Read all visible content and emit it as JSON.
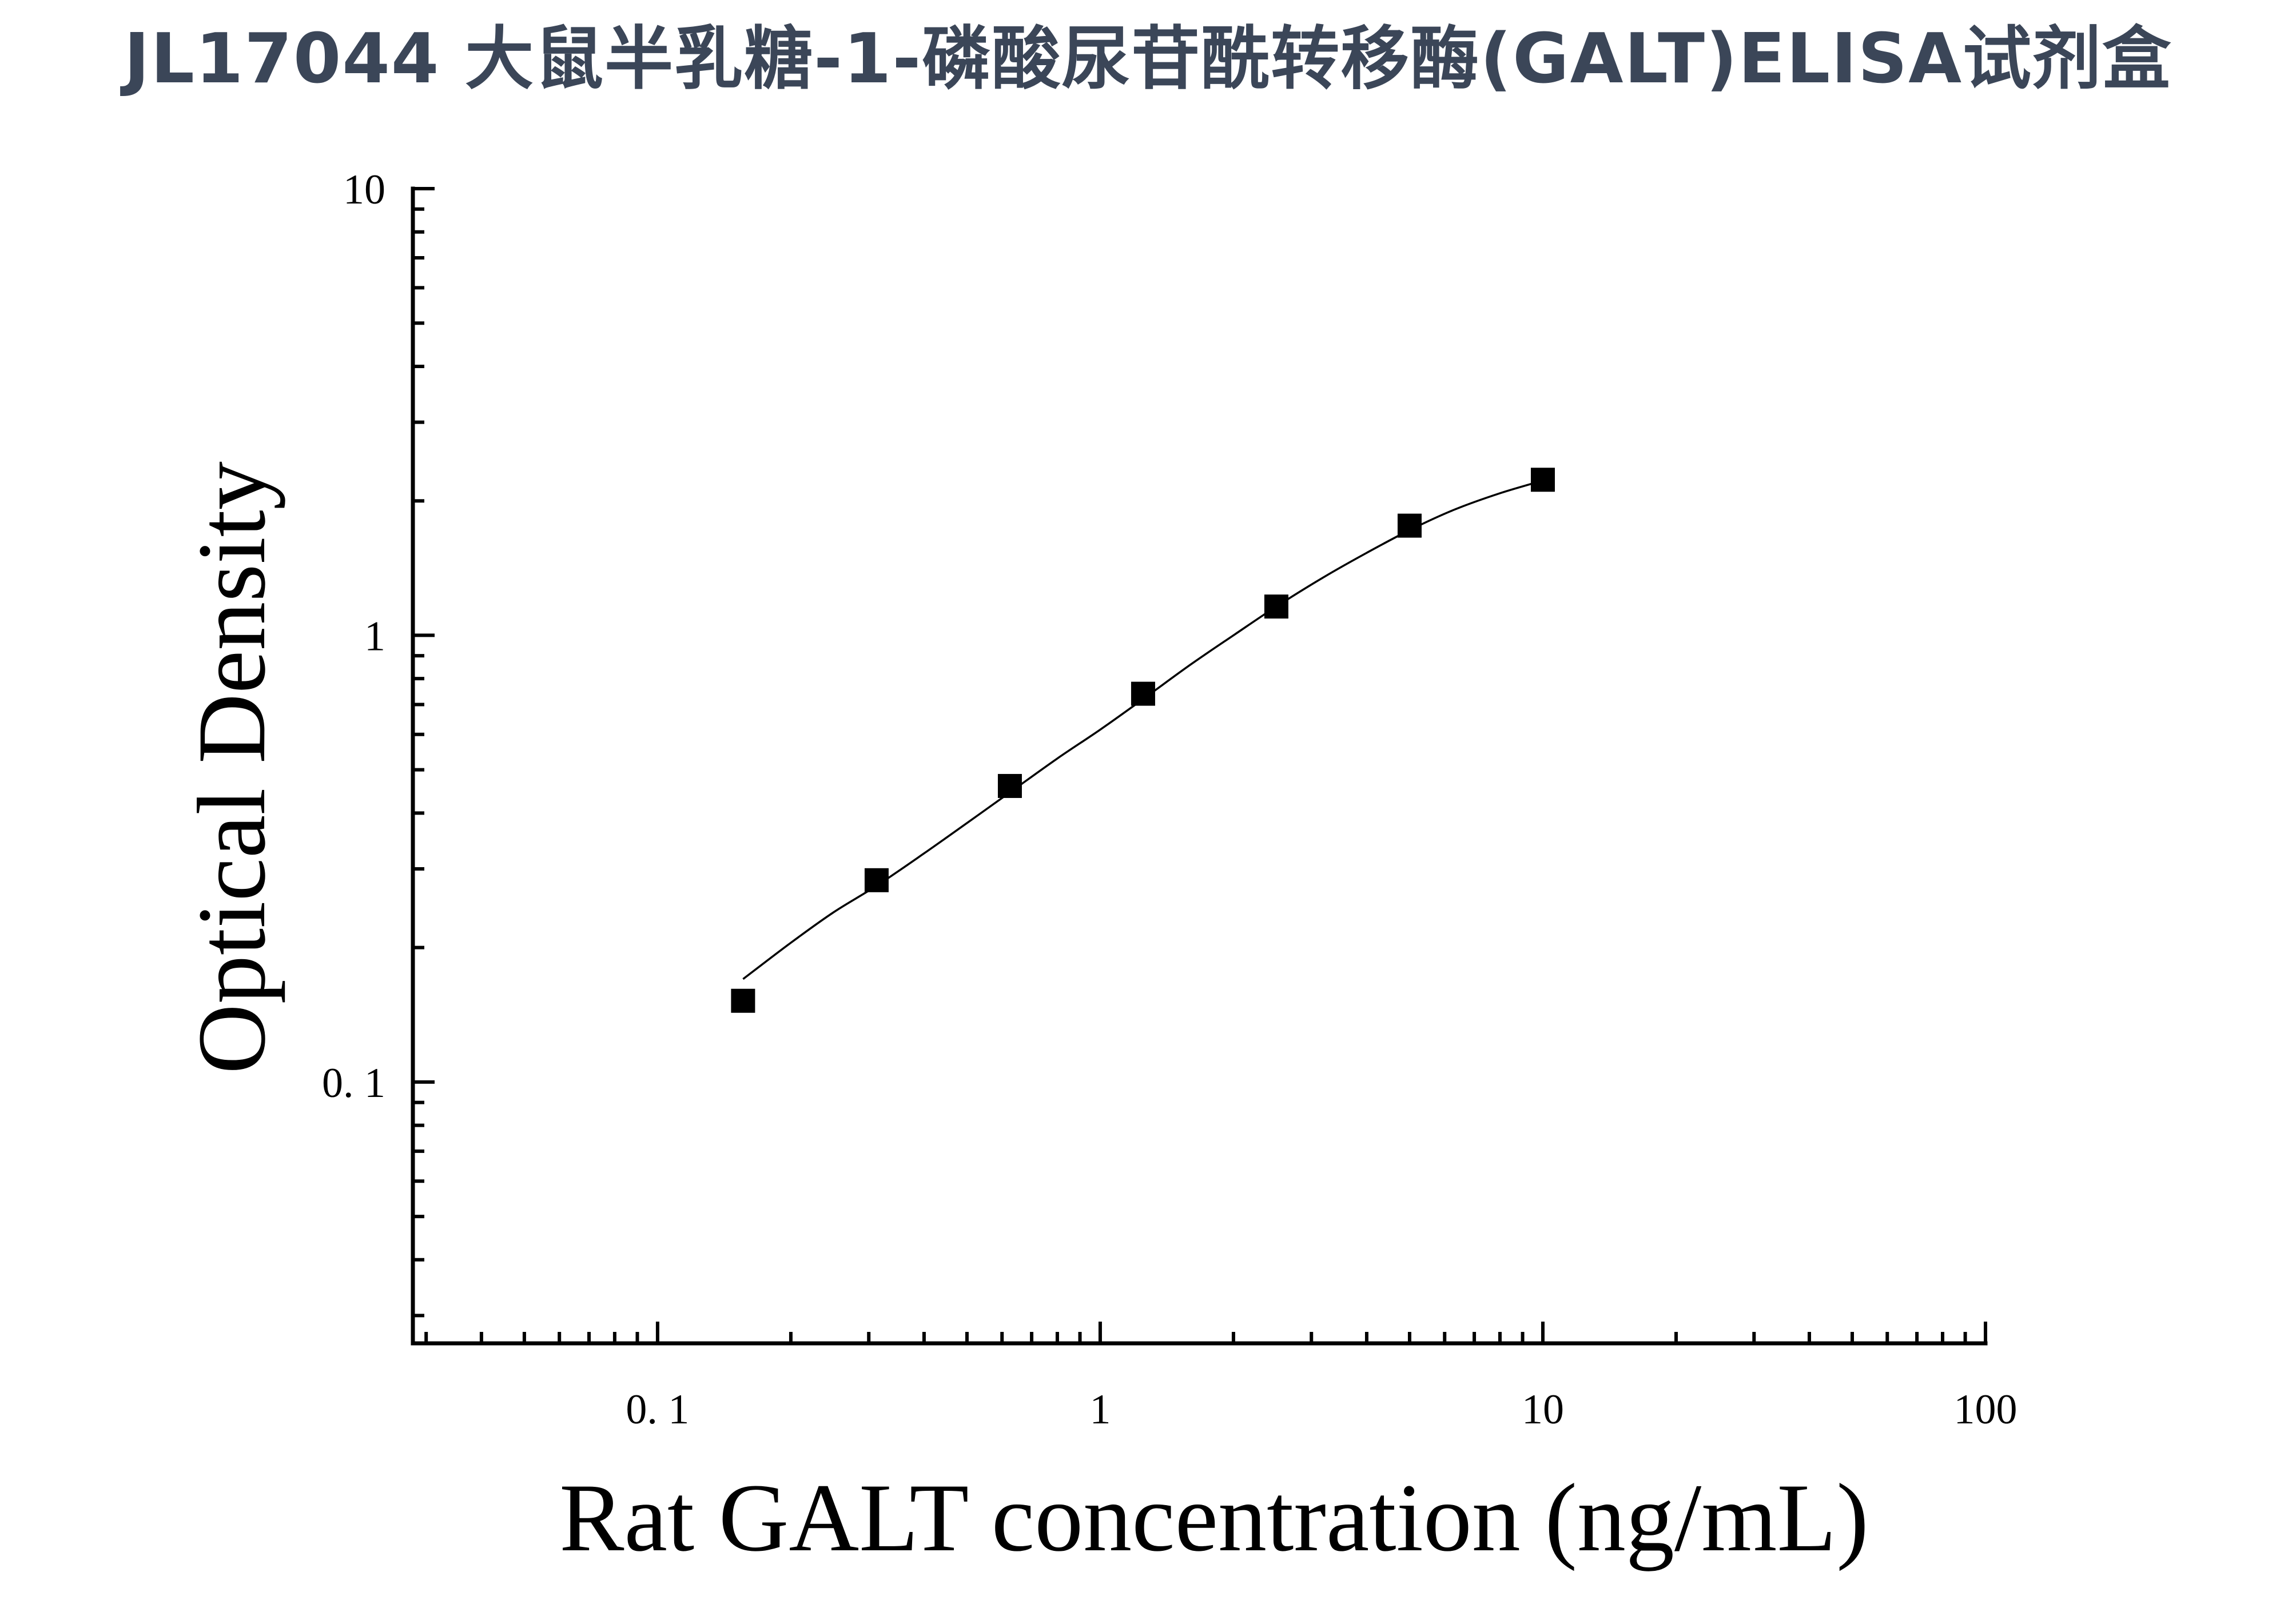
{
  "header": {
    "title": "JL17044 大鼠半乳糖-1-磷酸尿苷酰转移酶(GALT)ELISA试剂盒"
  },
  "colors": {
    "title": "#3b4658",
    "axis": "#000000",
    "marker": "#000000",
    "curve": "#000000"
  },
  "chart_data": {
    "type": "scatter",
    "title": "",
    "xlabel": "Rat GALT concentration (ng/mL)",
    "ylabel": "Optical Density",
    "x_scale": "log",
    "y_scale": "log",
    "xlim": [
      0.028,
      100
    ],
    "ylim": [
      0.026,
      10
    ],
    "x_ticks": [
      {
        "value": 0.1,
        "label": "0. 1"
      },
      {
        "value": 1,
        "label": "1"
      },
      {
        "value": 10,
        "label": "10"
      },
      {
        "value": 100,
        "label": "100"
      }
    ],
    "y_ticks": [
      {
        "value": 0.1,
        "label": "0. 1"
      },
      {
        "value": 1,
        "label": "1"
      },
      {
        "value": 10,
        "label": "10"
      }
    ],
    "grid": false,
    "legend": "none",
    "series": [
      {
        "marker": "square",
        "x": [
          0.156,
          0.3125,
          0.625,
          1.25,
          2.5,
          5,
          10
        ],
        "y": [
          0.152,
          0.283,
          0.46,
          0.74,
          1.16,
          1.76,
          2.23
        ]
      }
    ],
    "fit_curve": {
      "type": "4PL",
      "x": [
        0.156,
        0.2,
        0.25,
        0.3125,
        0.4,
        0.5,
        0.625,
        0.8,
        1,
        1.25,
        1.6,
        2,
        2.5,
        3.2,
        4,
        5,
        6.3,
        8,
        10
      ],
      "y": [
        0.17,
        0.205,
        0.24,
        0.275,
        0.325,
        0.38,
        0.445,
        0.53,
        0.615,
        0.72,
        0.86,
        1.0,
        1.16,
        1.35,
        1.53,
        1.72,
        1.91,
        2.08,
        2.22
      ]
    }
  }
}
